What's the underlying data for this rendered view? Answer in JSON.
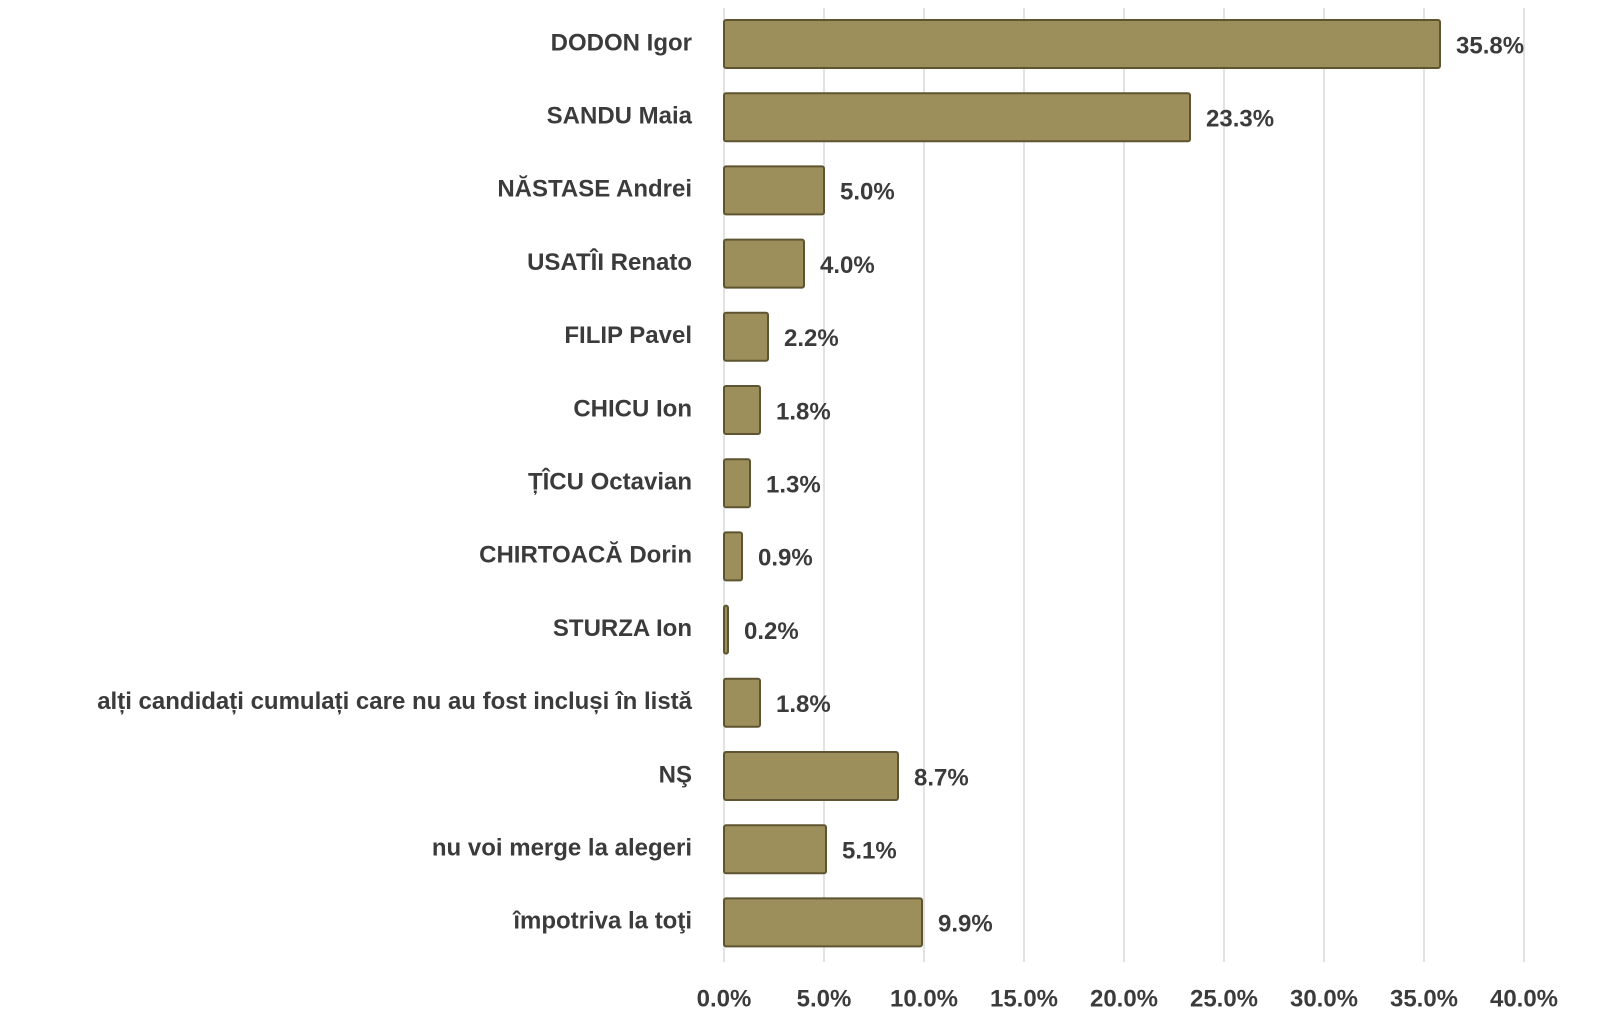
{
  "chart_data": {
    "type": "barh",
    "categories": [
      "DODON  Igor",
      "SANDU Maia",
      "NĂSTASE Andrei",
      "USATÎI Renato",
      "FILIP Pavel",
      "CHICU Ion",
      "ȚÎCU Octavian",
      "CHIRTOACĂ Dorin",
      "STURZA Ion",
      "alți candidați cumulați care nu au fost incluși în listă",
      "NŞ",
      "nu voi merge la alegeri",
      "împotriva la toţi"
    ],
    "values": [
      35.8,
      23.3,
      5.0,
      4.0,
      2.2,
      1.8,
      1.3,
      0.9,
      0.2,
      1.8,
      8.7,
      5.1,
      9.9
    ],
    "value_labels": [
      "35.8%",
      "23.3%",
      "5.0%",
      "4.0%",
      "2.2%",
      "1.8%",
      "1.3%",
      "0.9%",
      "0.2%",
      "1.8%",
      "8.7%",
      "5.1%",
      "9.9%"
    ],
    "color": "#9d8f5c",
    "xlim": [
      0,
      40
    ],
    "xticks": [
      {
        "value": 0,
        "label": "0.0%"
      },
      {
        "value": 5,
        "label": "5.0%"
      },
      {
        "value": 10,
        "label": "10.0%"
      },
      {
        "value": 15,
        "label": "15.0%"
      },
      {
        "value": 20,
        "label": "20.0%"
      },
      {
        "value": 25,
        "label": "25.0%"
      },
      {
        "value": 30,
        "label": "30.0%"
      },
      {
        "value": 35,
        "label": "35.0%"
      },
      {
        "value": 40,
        "label": "40.0%"
      }
    ],
    "grid": true
  }
}
